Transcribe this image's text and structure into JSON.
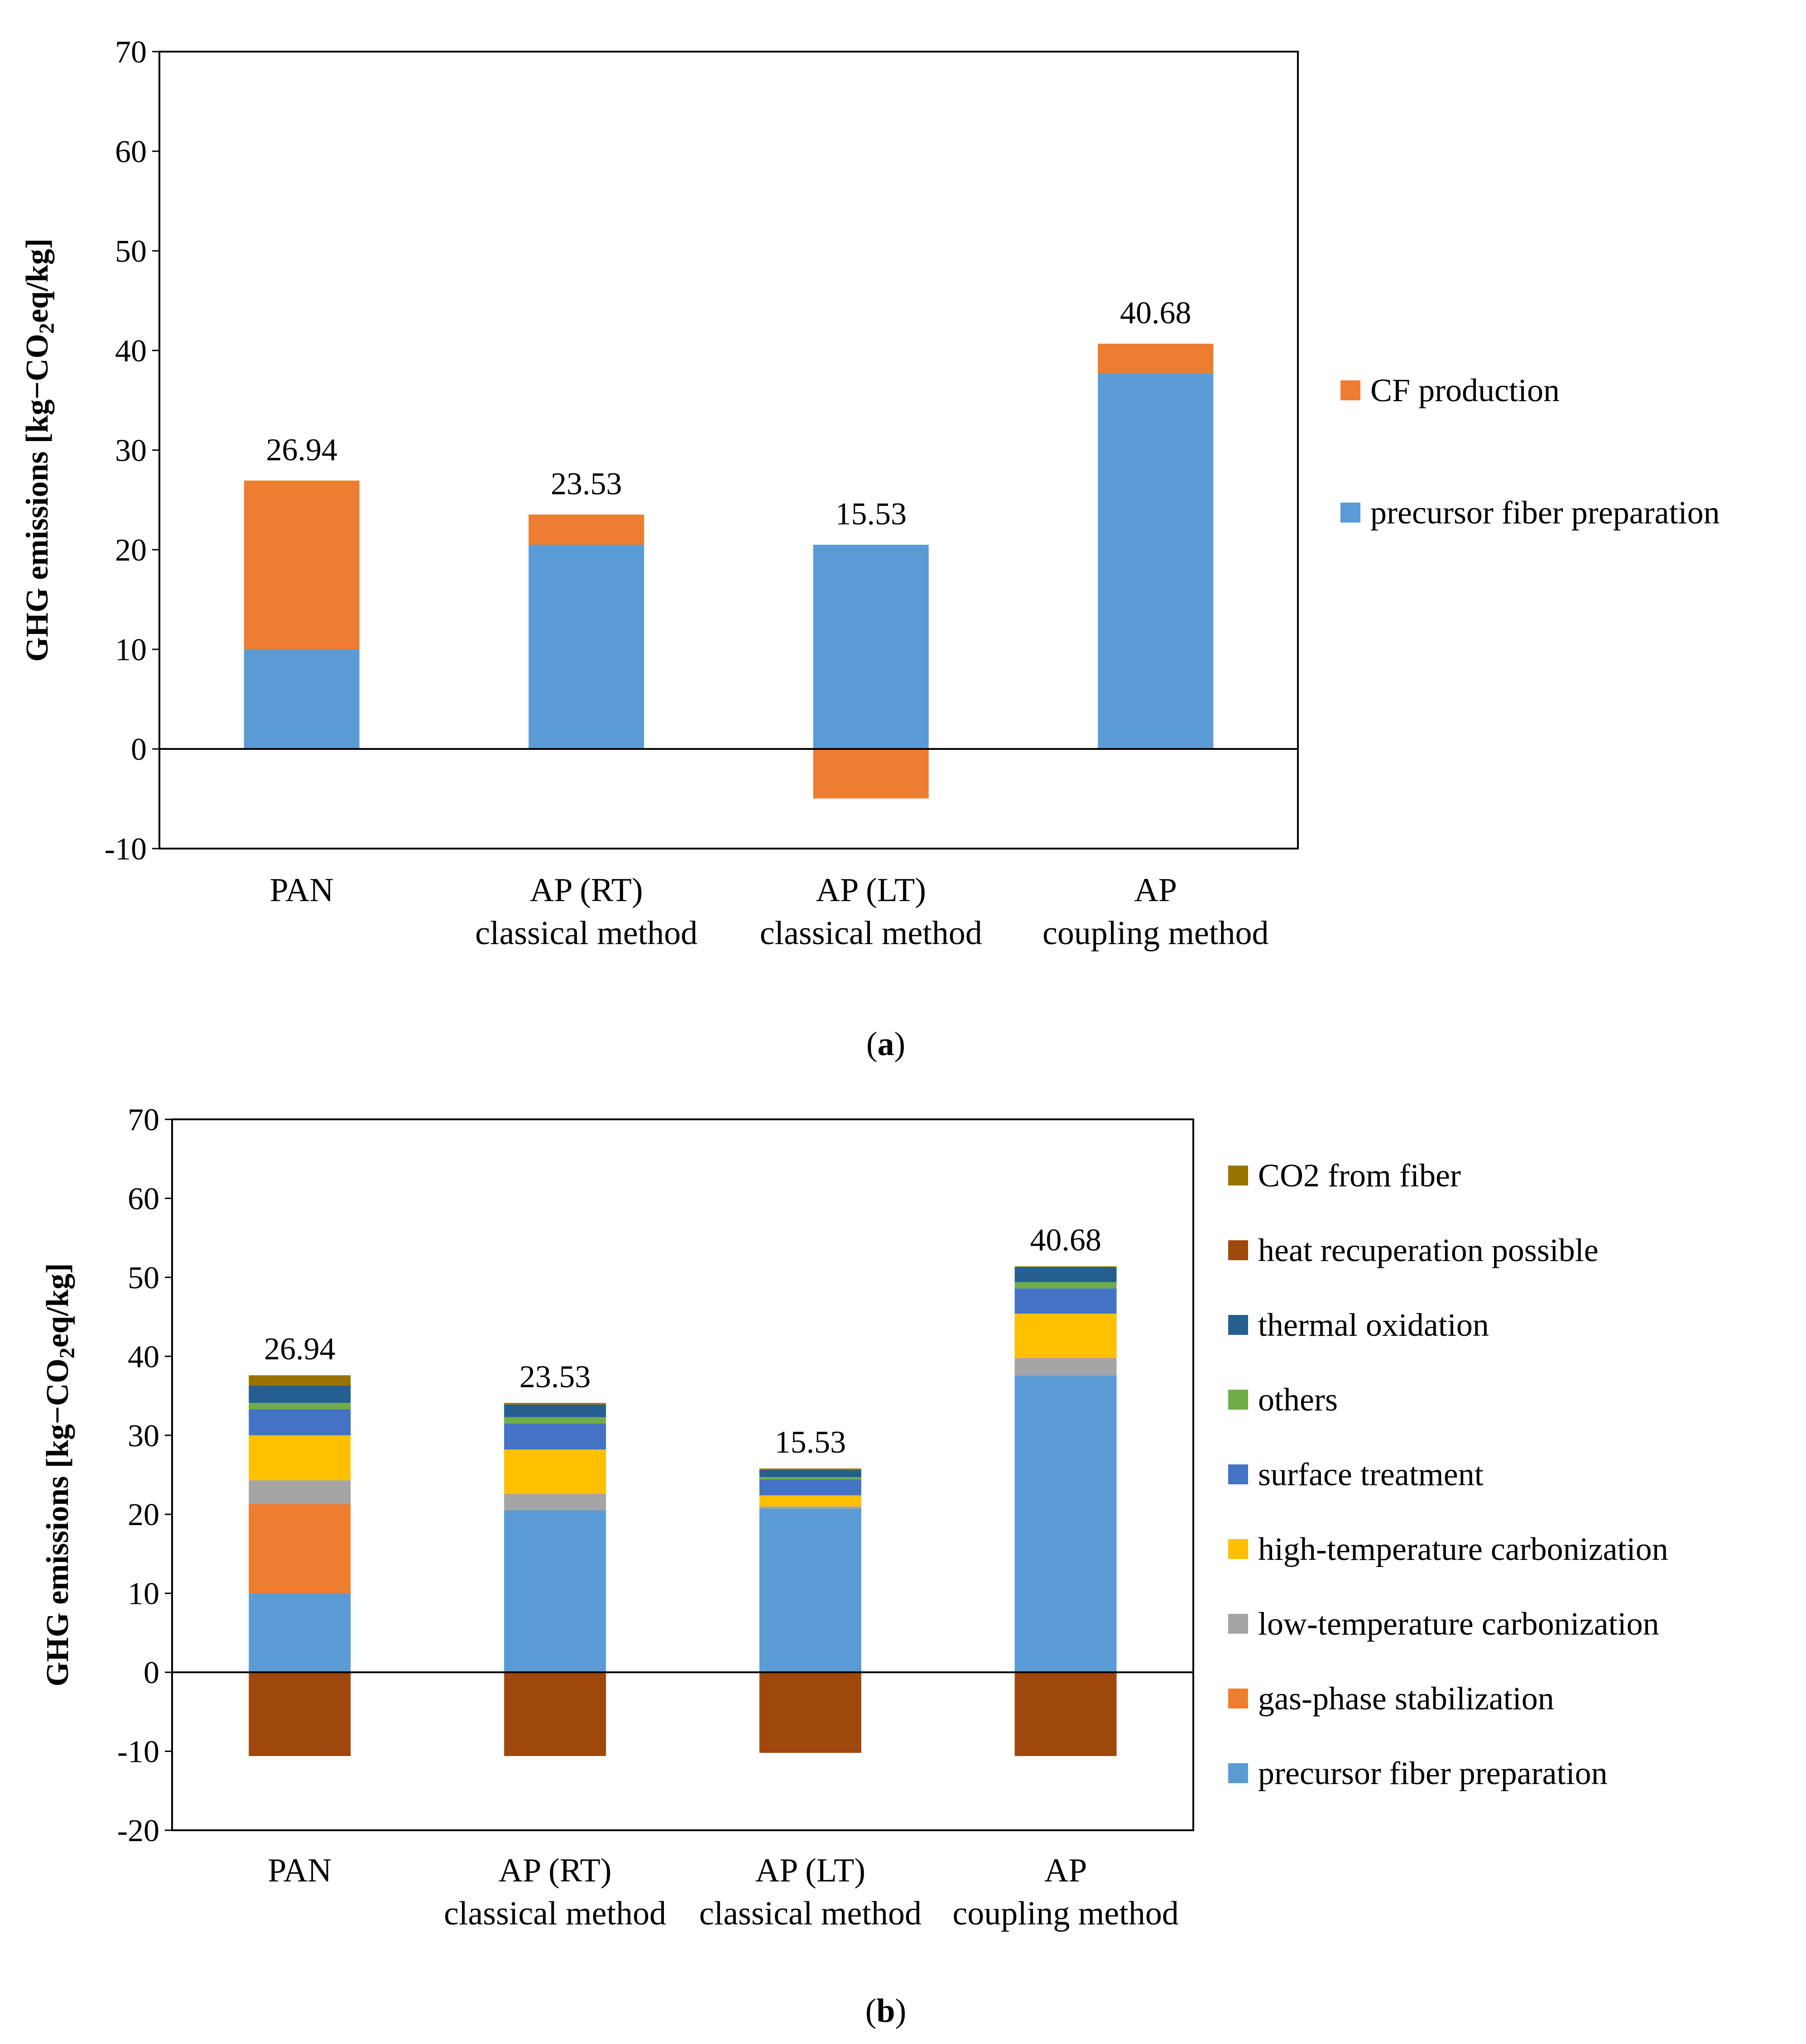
{
  "chart_data": [
    {
      "id": "a",
      "type": "bar",
      "stacked": true,
      "categories": [
        "PAN",
        "AP (RT)\nclassical method",
        "AP (LT)\nclassical method",
        "AP\ncoupling method"
      ],
      "series": [
        {
          "name": "precursor fiber preparation",
          "color": "#5b9bd5",
          "values": [
            10.0,
            20.5,
            20.5,
            37.7
          ]
        },
        {
          "name": "CF production",
          "color": "#ed7d31",
          "values": [
            16.94,
            3.03,
            -4.97,
            2.98
          ]
        }
      ],
      "data_labels": [
        "26.94",
        "23.53",
        "15.53",
        "40.68"
      ],
      "ylabel": "GHG emissions [kg−CO2eq/kg]",
      "ylim": [
        -10,
        70
      ],
      "yticks": [
        -10,
        0,
        10,
        20,
        30,
        40,
        50,
        60,
        70
      ],
      "legend_order": [
        "CF production",
        "precursor fiber preparation"
      ],
      "legend_position": "right",
      "caption": "a"
    },
    {
      "id": "b",
      "type": "bar",
      "stacked": true,
      "categories": [
        "PAN",
        "AP (RT)\nclassical method",
        "AP (LT)\nclassical method",
        "AP\ncoupling method"
      ],
      "series": [
        {
          "name": "precursor fiber preparation",
          "color": "#5b9bd5",
          "values": [
            10.0,
            20.5,
            20.7,
            37.6
          ]
        },
        {
          "name": "gas-phase stabilization",
          "color": "#ed7d31",
          "values": [
            11.3,
            0,
            0,
            0
          ]
        },
        {
          "name": "low-temperature carbonization",
          "color": "#a5a5a5",
          "values": [
            3.0,
            2.1,
            0.3,
            2.2
          ]
        },
        {
          "name": "high-temperature carbonization",
          "color": "#ffc000",
          "values": [
            5.7,
            5.6,
            1.4,
            5.6
          ]
        },
        {
          "name": "surface treatment",
          "color": "#4472c4",
          "values": [
            3.3,
            3.3,
            2.0,
            3.2
          ]
        },
        {
          "name": "others",
          "color": "#70ad47",
          "values": [
            0.8,
            0.8,
            0.3,
            0.8
          ]
        },
        {
          "name": "thermal oxidation",
          "color": "#255e91",
          "values": [
            2.2,
            1.6,
            0.9,
            1.9
          ]
        },
        {
          "name": "heat recuperation possible",
          "color": "#9e480e",
          "values": [
            -10.6,
            -10.6,
            -10.2,
            -10.6
          ]
        },
        {
          "name": "CO2 from fiber",
          "color": "#997300",
          "values": [
            1.3,
            0.2,
            0.2,
            0.1
          ]
        }
      ],
      "data_labels": [
        "26.94",
        "23.53",
        "15.53",
        "40.68"
      ],
      "ylabel": "GHG emissions [kg−CO2eq/kg]",
      "ylim": [
        -20,
        70
      ],
      "yticks": [
        -20,
        -10,
        0,
        10,
        20,
        30,
        40,
        50,
        60,
        70
      ],
      "legend_order": [
        "CO2 from fiber",
        "heat recuperation possible",
        "thermal oxidation",
        "others",
        "surface treatment",
        "high-temperature carbonization",
        "low-temperature carbonization",
        "gas-phase stabilization",
        "precursor fiber preparation"
      ],
      "legend_position": "right",
      "caption": "b"
    }
  ]
}
